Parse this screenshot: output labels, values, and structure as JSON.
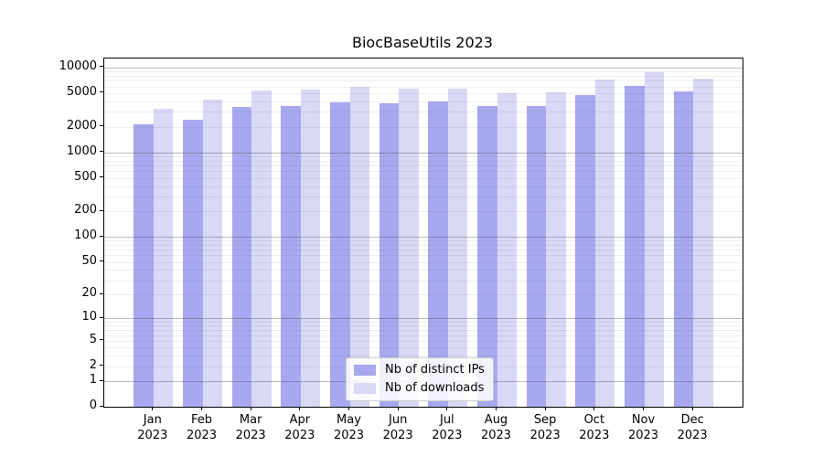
{
  "chart_data": {
    "type": "bar",
    "title": "BiocBaseUtils 2023",
    "categories": [
      "Jan",
      "Feb",
      "Mar",
      "Apr",
      "May",
      "Jun",
      "Jul",
      "Aug",
      "Sep",
      "Oct",
      "Nov",
      "Dec"
    ],
    "year_label": "2023",
    "series": [
      {
        "name": "Nb of distinct IPs",
        "color": "#a8a8f0",
        "values": [
          2150,
          2450,
          3450,
          3550,
          3900,
          3800,
          3950,
          3550,
          3500,
          4800,
          6100,
          5200
        ]
      },
      {
        "name": "Nb of downloads",
        "color": "#d8d8f7",
        "values": [
          3300,
          4200,
          5400,
          5500,
          5900,
          5600,
          5700,
          5000,
          5100,
          7200,
          8900,
          7500
        ]
      }
    ],
    "y_scale": "log1p",
    "y_ticks": [
      0,
      1,
      2,
      5,
      10,
      20,
      50,
      100,
      200,
      500,
      1000,
      2000,
      5000,
      10000
    ],
    "y_max": 12800,
    "grid": "both",
    "legend_position": "lower center",
    "colors": {
      "major_grid": "rgba(64,64,64,0.35)",
      "minor_grid": "rgba(64,64,64,0.09)",
      "axis": "#000000"
    }
  }
}
